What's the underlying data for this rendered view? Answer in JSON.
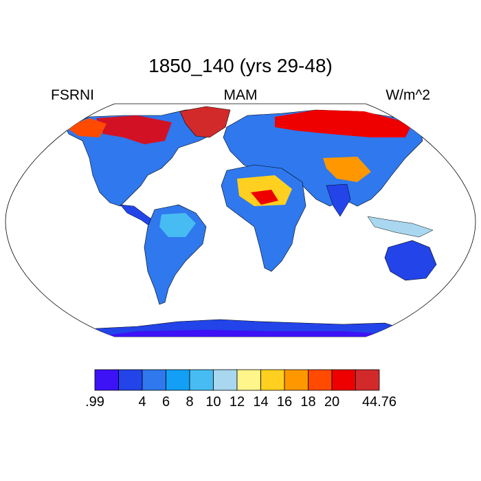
{
  "title": "1850_140 (yrs 29-48)",
  "variable": "FSRNI",
  "season": "MAM",
  "units": "W/m^2",
  "colorbar": {
    "colors": [
      "#3d12f5",
      "#2244e8",
      "#2f78ee",
      "#139ff6",
      "#46bcf3",
      "#a8d7ef",
      "#fff58a",
      "#ffd020",
      "#ff9800",
      "#ff4a00",
      "#ee0000",
      "#d22a2a"
    ],
    "labels": [
      ".99",
      "4",
      "6",
      "8",
      "10",
      "12",
      "14",
      "16",
      "18",
      "20",
      "44.76"
    ]
  },
  "map": {
    "projection": "robinson",
    "ocean_color": "#ffffff",
    "coastline_color": "#000000"
  }
}
